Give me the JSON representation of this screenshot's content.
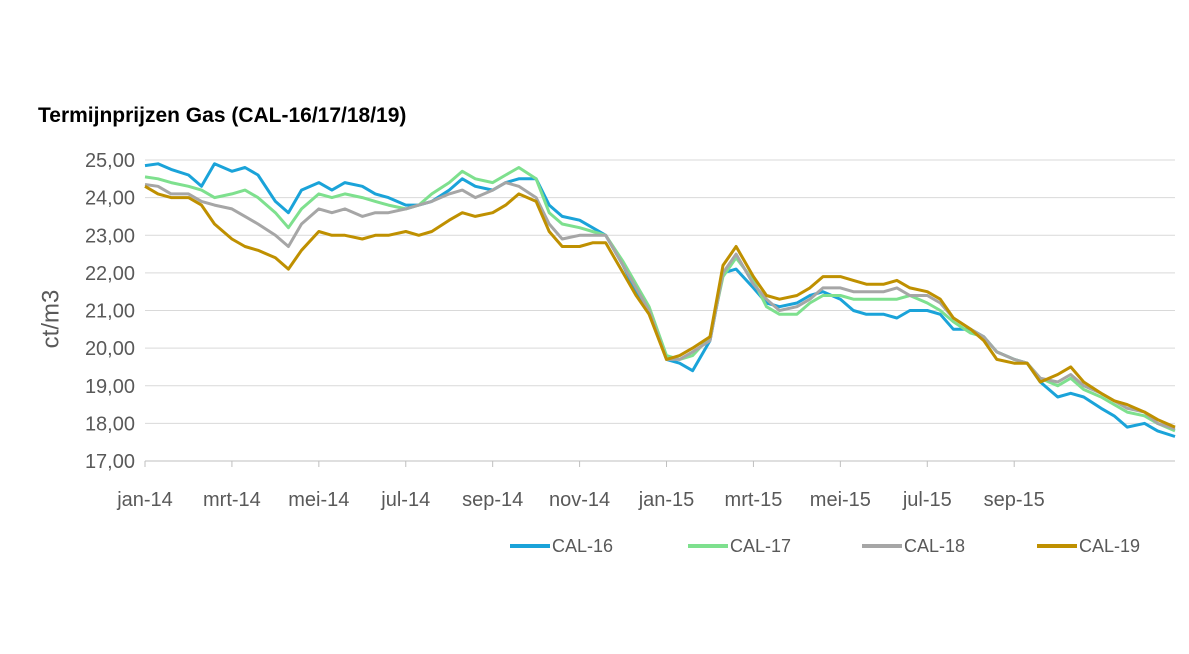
{
  "chart_data": {
    "type": "line",
    "title": "Termijnprijzen Gas (CAL-16/17/18/19)",
    "xlabel": "",
    "ylabel": "ct/m3",
    "ylim": [
      17.0,
      25.0
    ],
    "yticks": [
      "25,00",
      "24,00",
      "23,00",
      "22,00",
      "21,00",
      "20,00",
      "19,00",
      "18,00",
      "17,00"
    ],
    "xticks": [
      "jan-14",
      "mrt-14",
      "mei-14",
      "jul-14",
      "sep-14",
      "nov-14",
      "jan-15",
      "mrt-15",
      "mei-15",
      "jul-15",
      "sep-15"
    ],
    "x_range": [
      0,
      23.7
    ],
    "grid": true,
    "legend_position": "bottom",
    "series": [
      {
        "name": "CAL-16",
        "color": "#1aa3d9",
        "points": [
          [
            0,
            24.85
          ],
          [
            0.3,
            24.9
          ],
          [
            0.6,
            24.75
          ],
          [
            1,
            24.6
          ],
          [
            1.3,
            24.3
          ],
          [
            1.6,
            24.9
          ],
          [
            2,
            24.7
          ],
          [
            2.3,
            24.8
          ],
          [
            2.6,
            24.6
          ],
          [
            3,
            23.9
          ],
          [
            3.3,
            23.6
          ],
          [
            3.6,
            24.2
          ],
          [
            4,
            24.4
          ],
          [
            4.3,
            24.2
          ],
          [
            4.6,
            24.4
          ],
          [
            5,
            24.3
          ],
          [
            5.3,
            24.1
          ],
          [
            5.6,
            24.0
          ],
          [
            6,
            23.8
          ],
          [
            6.3,
            23.8
          ],
          [
            6.6,
            23.9
          ],
          [
            7,
            24.2
          ],
          [
            7.3,
            24.5
          ],
          [
            7.6,
            24.3
          ],
          [
            8,
            24.2
          ],
          [
            8.3,
            24.4
          ],
          [
            8.6,
            24.5
          ],
          [
            9,
            24.5
          ],
          [
            9.3,
            23.8
          ],
          [
            9.6,
            23.5
          ],
          [
            10,
            23.4
          ],
          [
            10.3,
            23.2
          ],
          [
            10.6,
            23.0
          ],
          [
            11,
            22.2
          ],
          [
            11.3,
            21.5
          ],
          [
            11.6,
            21.0
          ],
          [
            12,
            19.7
          ],
          [
            12.3,
            19.6
          ],
          [
            12.6,
            19.4
          ],
          [
            13,
            20.2
          ],
          [
            13.3,
            22.0
          ],
          [
            13.6,
            22.1
          ],
          [
            14,
            21.6
          ],
          [
            14.3,
            21.2
          ],
          [
            14.6,
            21.1
          ],
          [
            15,
            21.2
          ],
          [
            15.3,
            21.4
          ],
          [
            15.6,
            21.5
          ],
          [
            16,
            21.3
          ],
          [
            16.3,
            21.0
          ],
          [
            16.6,
            20.9
          ],
          [
            17,
            20.9
          ],
          [
            17.3,
            20.8
          ],
          [
            17.6,
            21.0
          ],
          [
            18,
            21.0
          ],
          [
            18.3,
            20.9
          ],
          [
            18.6,
            20.5
          ],
          [
            19,
            20.5
          ],
          [
            19.3,
            20.3
          ],
          [
            19.6,
            19.9
          ],
          [
            20,
            19.7
          ],
          [
            20.3,
            19.6
          ],
          [
            20.6,
            19.1
          ],
          [
            21,
            18.7
          ],
          [
            21.3,
            18.8
          ],
          [
            21.6,
            18.7
          ],
          [
            22,
            18.4
          ],
          [
            22.3,
            18.2
          ],
          [
            22.6,
            17.9
          ],
          [
            23,
            18.0
          ],
          [
            23.3,
            17.8
          ],
          [
            23.7,
            17.65
          ]
        ]
      },
      {
        "name": "CAL-17",
        "color": "#7ee08e",
        "points": [
          [
            0,
            24.55
          ],
          [
            0.3,
            24.5
          ],
          [
            0.6,
            24.4
          ],
          [
            1,
            24.3
          ],
          [
            1.3,
            24.2
          ],
          [
            1.6,
            24.0
          ],
          [
            2,
            24.1
          ],
          [
            2.3,
            24.2
          ],
          [
            2.6,
            24.0
          ],
          [
            3,
            23.6
          ],
          [
            3.3,
            23.2
          ],
          [
            3.6,
            23.7
          ],
          [
            4,
            24.1
          ],
          [
            4.3,
            24.0
          ],
          [
            4.6,
            24.1
          ],
          [
            5,
            24.0
          ],
          [
            5.3,
            23.9
          ],
          [
            5.6,
            23.8
          ],
          [
            6,
            23.7
          ],
          [
            6.3,
            23.8
          ],
          [
            6.6,
            24.1
          ],
          [
            7,
            24.4
          ],
          [
            7.3,
            24.7
          ],
          [
            7.6,
            24.5
          ],
          [
            8,
            24.4
          ],
          [
            8.3,
            24.6
          ],
          [
            8.6,
            24.8
          ],
          [
            9,
            24.5
          ],
          [
            9.3,
            23.6
          ],
          [
            9.6,
            23.3
          ],
          [
            10,
            23.2
          ],
          [
            10.3,
            23.1
          ],
          [
            10.6,
            23.0
          ],
          [
            11,
            22.3
          ],
          [
            11.3,
            21.7
          ],
          [
            11.6,
            21.1
          ],
          [
            12,
            19.8
          ],
          [
            12.3,
            19.7
          ],
          [
            12.6,
            19.8
          ],
          [
            13,
            20.3
          ],
          [
            13.3,
            21.9
          ],
          [
            13.6,
            22.4
          ],
          [
            14,
            21.8
          ],
          [
            14.3,
            21.1
          ],
          [
            14.6,
            20.9
          ],
          [
            15,
            20.9
          ],
          [
            15.3,
            21.2
          ],
          [
            15.6,
            21.4
          ],
          [
            16,
            21.4
          ],
          [
            16.3,
            21.3
          ],
          [
            16.6,
            21.3
          ],
          [
            17,
            21.3
          ],
          [
            17.3,
            21.3
          ],
          [
            17.6,
            21.4
          ],
          [
            18,
            21.2
          ],
          [
            18.3,
            21.0
          ],
          [
            18.6,
            20.7
          ],
          [
            19,
            20.4
          ],
          [
            19.3,
            20.3
          ],
          [
            19.6,
            19.9
          ],
          [
            20,
            19.7
          ],
          [
            20.3,
            19.6
          ],
          [
            20.6,
            19.2
          ],
          [
            21,
            19.0
          ],
          [
            21.3,
            19.2
          ],
          [
            21.6,
            18.9
          ],
          [
            22,
            18.7
          ],
          [
            22.3,
            18.5
          ],
          [
            22.6,
            18.3
          ],
          [
            23,
            18.2
          ],
          [
            23.3,
            18.0
          ],
          [
            23.7,
            17.8
          ]
        ]
      },
      {
        "name": "CAL-18",
        "color": "#a6a6a6",
        "points": [
          [
            0,
            24.35
          ],
          [
            0.3,
            24.3
          ],
          [
            0.6,
            24.1
          ],
          [
            1,
            24.1
          ],
          [
            1.3,
            23.9
          ],
          [
            1.6,
            23.8
          ],
          [
            2,
            23.7
          ],
          [
            2.3,
            23.5
          ],
          [
            2.6,
            23.3
          ],
          [
            3,
            23.0
          ],
          [
            3.3,
            22.7
          ],
          [
            3.6,
            23.3
          ],
          [
            4,
            23.7
          ],
          [
            4.3,
            23.6
          ],
          [
            4.6,
            23.7
          ],
          [
            5,
            23.5
          ],
          [
            5.3,
            23.6
          ],
          [
            5.6,
            23.6
          ],
          [
            6,
            23.7
          ],
          [
            6.3,
            23.8
          ],
          [
            6.6,
            23.9
          ],
          [
            7,
            24.1
          ],
          [
            7.3,
            24.2
          ],
          [
            7.6,
            24.0
          ],
          [
            8,
            24.2
          ],
          [
            8.3,
            24.4
          ],
          [
            8.6,
            24.3
          ],
          [
            9,
            24.0
          ],
          [
            9.3,
            23.3
          ],
          [
            9.6,
            22.9
          ],
          [
            10,
            23.0
          ],
          [
            10.3,
            23.0
          ],
          [
            10.6,
            23.0
          ],
          [
            11,
            22.2
          ],
          [
            11.3,
            21.6
          ],
          [
            11.6,
            21.0
          ],
          [
            12,
            19.7
          ],
          [
            12.3,
            19.7
          ],
          [
            12.6,
            19.9
          ],
          [
            13,
            20.2
          ],
          [
            13.3,
            22.0
          ],
          [
            13.6,
            22.5
          ],
          [
            14,
            21.7
          ],
          [
            14.3,
            21.3
          ],
          [
            14.6,
            21.0
          ],
          [
            15,
            21.1
          ],
          [
            15.3,
            21.3
          ],
          [
            15.6,
            21.6
          ],
          [
            16,
            21.6
          ],
          [
            16.3,
            21.5
          ],
          [
            16.6,
            21.5
          ],
          [
            17,
            21.5
          ],
          [
            17.3,
            21.6
          ],
          [
            17.6,
            21.4
          ],
          [
            18,
            21.4
          ],
          [
            18.3,
            21.2
          ],
          [
            18.6,
            20.8
          ],
          [
            19,
            20.5
          ],
          [
            19.3,
            20.3
          ],
          [
            19.6,
            19.9
          ],
          [
            20,
            19.7
          ],
          [
            20.3,
            19.6
          ],
          [
            20.6,
            19.2
          ],
          [
            21,
            19.1
          ],
          [
            21.3,
            19.3
          ],
          [
            21.6,
            19.0
          ],
          [
            22,
            18.8
          ],
          [
            22.3,
            18.6
          ],
          [
            22.6,
            18.4
          ],
          [
            23,
            18.3
          ],
          [
            23.3,
            18.0
          ],
          [
            23.7,
            17.85
          ]
        ]
      },
      {
        "name": "CAL-19",
        "color": "#bf9000",
        "points": [
          [
            0,
            24.3
          ],
          [
            0.3,
            24.1
          ],
          [
            0.6,
            24.0
          ],
          [
            1,
            24.0
          ],
          [
            1.3,
            23.8
          ],
          [
            1.6,
            23.3
          ],
          [
            2,
            22.9
          ],
          [
            2.3,
            22.7
          ],
          [
            2.6,
            22.6
          ],
          [
            3,
            22.4
          ],
          [
            3.3,
            22.1
          ],
          [
            3.6,
            22.6
          ],
          [
            4,
            23.1
          ],
          [
            4.3,
            23.0
          ],
          [
            4.6,
            23.0
          ],
          [
            5,
            22.9
          ],
          [
            5.3,
            23.0
          ],
          [
            5.6,
            23.0
          ],
          [
            6,
            23.1
          ],
          [
            6.3,
            23.0
          ],
          [
            6.6,
            23.1
          ],
          [
            7,
            23.4
          ],
          [
            7.3,
            23.6
          ],
          [
            7.6,
            23.5
          ],
          [
            8,
            23.6
          ],
          [
            8.3,
            23.8
          ],
          [
            8.6,
            24.1
          ],
          [
            9,
            23.9
          ],
          [
            9.3,
            23.1
          ],
          [
            9.6,
            22.7
          ],
          [
            10,
            22.7
          ],
          [
            10.3,
            22.8
          ],
          [
            10.6,
            22.8
          ],
          [
            11,
            22.0
          ],
          [
            11.3,
            21.4
          ],
          [
            11.6,
            20.9
          ],
          [
            12,
            19.7
          ],
          [
            12.3,
            19.8
          ],
          [
            12.6,
            20.0
          ],
          [
            13,
            20.3
          ],
          [
            13.3,
            22.2
          ],
          [
            13.6,
            22.7
          ],
          [
            14,
            21.9
          ],
          [
            14.3,
            21.4
          ],
          [
            14.6,
            21.3
          ],
          [
            15,
            21.4
          ],
          [
            15.3,
            21.6
          ],
          [
            15.6,
            21.9
          ],
          [
            16,
            21.9
          ],
          [
            16.3,
            21.8
          ],
          [
            16.6,
            21.7
          ],
          [
            17,
            21.7
          ],
          [
            17.3,
            21.8
          ],
          [
            17.6,
            21.6
          ],
          [
            18,
            21.5
          ],
          [
            18.3,
            21.3
          ],
          [
            18.6,
            20.8
          ],
          [
            19,
            20.5
          ],
          [
            19.3,
            20.2
          ],
          [
            19.6,
            19.7
          ],
          [
            20,
            19.6
          ],
          [
            20.3,
            19.6
          ],
          [
            20.6,
            19.1
          ],
          [
            21,
            19.3
          ],
          [
            21.3,
            19.5
          ],
          [
            21.6,
            19.1
          ],
          [
            22,
            18.8
          ],
          [
            22.3,
            18.6
          ],
          [
            22.6,
            18.5
          ],
          [
            23,
            18.3
          ],
          [
            23.3,
            18.1
          ],
          [
            23.7,
            17.9
          ]
        ]
      }
    ]
  }
}
